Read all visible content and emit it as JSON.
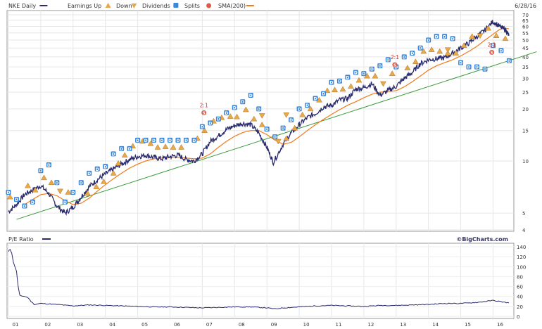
{
  "chart_data": [
    {
      "type": "line",
      "title": "NKE Daily",
      "date": "6/28/16",
      "y_scale": "log",
      "ylim": [
        4,
        70
      ],
      "y_ticks": [
        4,
        5,
        10,
        15,
        20,
        25,
        30,
        35,
        40,
        45,
        50,
        55,
        60,
        65,
        70
      ],
      "x_ticks": [
        "01",
        "02",
        "03",
        "04",
        "05",
        "06",
        "07",
        "08",
        "09",
        "10",
        "11",
        "12",
        "13",
        "14",
        "15",
        "16"
      ],
      "legend": {
        "placement": "top",
        "items": [
          {
            "key": "price",
            "label": "NKE Daily",
            "color": "#2a2a6e",
            "icon": "line"
          },
          {
            "key": "earn_up",
            "label": "Earnings Up",
            "color": "#e8a84a",
            "icon": "triangle-up"
          },
          {
            "key": "earn_down",
            "label": "Down",
            "color": "#e8a84a",
            "icon": "triangle-down"
          },
          {
            "key": "dividends",
            "label": "Dividends",
            "color": "#3a86d9",
            "icon": "square-d"
          },
          {
            "key": "splits",
            "label": "Splits",
            "color": "#e05a4a",
            "icon": "circle-s"
          },
          {
            "key": "sma",
            "label": "SMA(200)",
            "color": "#f07a1a",
            "icon": "line"
          }
        ]
      },
      "series": [
        {
          "name": "NKE Daily",
          "color": "#2a2a6e",
          "x": [
            2001.0,
            2001.25,
            2001.5,
            2001.75,
            2002.0,
            2002.25,
            2002.5,
            2002.75,
            2003.0,
            2003.25,
            2003.5,
            2003.75,
            2004.0,
            2004.25,
            2004.5,
            2004.75,
            2005.0,
            2005.25,
            2005.5,
            2005.75,
            2006.0,
            2006.25,
            2006.5,
            2006.75,
            2007.0,
            2007.25,
            2007.5,
            2007.75,
            2008.0,
            2008.25,
            2008.5,
            2008.75,
            2009.0,
            2009.2,
            2009.5,
            2009.75,
            2010.0,
            2010.25,
            2010.5,
            2010.75,
            2011.0,
            2011.25,
            2011.5,
            2011.75,
            2012.0,
            2012.25,
            2012.5,
            2012.75,
            2013.0,
            2013.25,
            2013.5,
            2013.75,
            2014.0,
            2014.25,
            2014.5,
            2014.75,
            2015.0,
            2015.25,
            2015.5,
            2015.75,
            2016.0,
            2016.2,
            2016.4,
            2016.49
          ],
          "values": [
            5.1,
            5.6,
            6.4,
            6.8,
            7.2,
            6.5,
            5.5,
            5.0,
            5.4,
            6.2,
            7.1,
            7.8,
            8.4,
            9.0,
            9.6,
            10.2,
            10.6,
            10.8,
            10.5,
            10.3,
            10.6,
            10.8,
            10.2,
            10.0,
            11.0,
            13.0,
            14.0,
            15.2,
            16.0,
            16.5,
            16.2,
            14.5,
            12.0,
            9.8,
            12.5,
            14.5,
            16.2,
            17.8,
            18.8,
            20.5,
            21.0,
            22.5,
            23.0,
            26.0,
            26.5,
            28.0,
            24.0,
            25.5,
            27.0,
            30.0,
            32.5,
            36.5,
            38.5,
            39.0,
            39.5,
            42.0,
            45.0,
            48.0,
            52.5,
            57.0,
            64.0,
            60.0,
            57.0,
            53.0
          ]
        },
        {
          "name": "SMA(200)",
          "color": "#f07a1a",
          "x": [
            2001.5,
            2001.75,
            2002.0,
            2002.25,
            2002.5,
            2002.75,
            2003.0,
            2003.25,
            2003.5,
            2003.75,
            2004.0,
            2004.25,
            2004.5,
            2004.75,
            2005.0,
            2005.25,
            2005.5,
            2005.75,
            2006.0,
            2006.25,
            2006.5,
            2006.75,
            2007.0,
            2007.25,
            2007.5,
            2007.75,
            2008.0,
            2008.25,
            2008.5,
            2008.75,
            2009.0,
            2009.25,
            2009.5,
            2009.75,
            2010.0,
            2010.25,
            2010.5,
            2010.75,
            2011.0,
            2011.25,
            2011.5,
            2011.75,
            2012.0,
            2012.25,
            2012.5,
            2012.75,
            2013.0,
            2013.25,
            2013.5,
            2013.75,
            2014.0,
            2014.25,
            2014.5,
            2014.75,
            2015.0,
            2015.25,
            2015.5,
            2015.75,
            2016.0,
            2016.2,
            2016.4,
            2016.49
          ],
          "values": [
            5.6,
            6.0,
            6.4,
            6.5,
            6.3,
            5.9,
            5.6,
            5.7,
            6.1,
            6.7,
            7.3,
            7.9,
            8.5,
            9.1,
            9.6,
            10.0,
            10.3,
            10.4,
            10.5,
            10.5,
            10.4,
            10.3,
            10.4,
            11.0,
            12.0,
            13.0,
            13.9,
            14.6,
            15.0,
            15.0,
            14.2,
            13.2,
            12.5,
            12.8,
            13.8,
            15.0,
            16.2,
            17.4,
            18.6,
            19.8,
            21.0,
            22.0,
            23.2,
            24.3,
            25.0,
            25.2,
            25.5,
            26.8,
            28.7,
            31.0,
            33.5,
            35.5,
            37.0,
            38.5,
            40.5,
            43.0,
            46.0,
            50.0,
            54.0,
            57.5,
            58.5,
            58.0
          ]
        },
        {
          "name": "Trendline",
          "color": "#3a9a3a",
          "x": [
            2001.25,
            2016.49
          ],
          "values": [
            4.6,
            38.0
          ]
        }
      ],
      "markers": {
        "earnings_up": [
          {
            "x": 2001.05,
            "y": 6.2
          },
          {
            "x": 2001.6,
            "y": 7.2
          },
          {
            "x": 2001.83,
            "y": 6.8
          },
          {
            "x": 2002.1,
            "y": 8.0
          },
          {
            "x": 2002.33,
            "y": 7.5
          },
          {
            "x": 2002.85,
            "y": 6.6
          },
          {
            "x": 2003.45,
            "y": 6.5
          },
          {
            "x": 2003.72,
            "y": 7.1
          },
          {
            "x": 2003.95,
            "y": 7.6
          },
          {
            "x": 2004.25,
            "y": 8.5
          },
          {
            "x": 2004.4,
            "y": 9.7
          },
          {
            "x": 2004.6,
            "y": 10.8
          },
          {
            "x": 2004.85,
            "y": 12.2
          },
          {
            "x": 2005.15,
            "y": 13.0
          },
          {
            "x": 2005.4,
            "y": 12.6
          },
          {
            "x": 2005.62,
            "y": 12.0
          },
          {
            "x": 2005.86,
            "y": 12.1
          },
          {
            "x": 2006.1,
            "y": 12.0
          },
          {
            "x": 2006.35,
            "y": 12.0
          },
          {
            "x": 2006.85,
            "y": 13.5
          },
          {
            "x": 2007.07,
            "y": 15.0
          },
          {
            "x": 2007.35,
            "y": 17.0
          },
          {
            "x": 2007.6,
            "y": 17.8
          },
          {
            "x": 2007.87,
            "y": 18.1
          },
          {
            "x": 2008.07,
            "y": 18.0
          },
          {
            "x": 2008.35,
            "y": 19.8
          },
          {
            "x": 2008.6,
            "y": 17.5
          },
          {
            "x": 2008.85,
            "y": 16.2
          },
          {
            "x": 2009.6,
            "y": 13.5
          },
          {
            "x": 2009.86,
            "y": 15.5
          },
          {
            "x": 2010.1,
            "y": 18.5
          },
          {
            "x": 2010.35,
            "y": 20.0
          },
          {
            "x": 2010.62,
            "y": 22.5
          },
          {
            "x": 2010.87,
            "y": 25.5
          },
          {
            "x": 2011.1,
            "y": 25.8
          },
          {
            "x": 2011.35,
            "y": 26.0
          },
          {
            "x": 2011.6,
            "y": 27.0
          },
          {
            "x": 2011.85,
            "y": 29.3
          },
          {
            "x": 2012.1,
            "y": 31.0
          },
          {
            "x": 2012.35,
            "y": 31.0
          },
          {
            "x": 2012.88,
            "y": 32.0
          },
          {
            "x": 2013.35,
            "y": 34.5
          },
          {
            "x": 2013.6,
            "y": 37.5
          },
          {
            "x": 2013.85,
            "y": 43.0
          },
          {
            "x": 2014.1,
            "y": 44.0
          },
          {
            "x": 2014.35,
            "y": 43.0
          },
          {
            "x": 2014.6,
            "y": 42.0
          },
          {
            "x": 2014.85,
            "y": 42.0
          },
          {
            "x": 2015.1,
            "y": 46.5
          },
          {
            "x": 2015.35,
            "y": 52.5
          },
          {
            "x": 2015.85,
            "y": 58.5
          },
          {
            "x": 2016.1,
            "y": 53.0
          },
          {
            "x": 2016.38,
            "y": 51.0
          }
        ],
        "earnings_down": [
          {
            "x": 2002.6,
            "y": 6.7
          },
          {
            "x": 2008.85,
            "y": 18.3
          },
          {
            "x": 2009.35,
            "y": 13.0
          },
          {
            "x": 2009.6,
            "y": 18.5
          },
          {
            "x": 2012.6,
            "y": 28.0
          },
          {
            "x": 2014.6,
            "y": 44.0
          },
          {
            "x": 2015.6,
            "y": 53.0
          }
        ],
        "dividends": [
          {
            "x": 2001.0,
            "y": 6.6
          },
          {
            "x": 2001.25,
            "y": 6.0
          },
          {
            "x": 2001.5,
            "y": 5.5
          },
          {
            "x": 2001.75,
            "y": 5.8
          },
          {
            "x": 2002.0,
            "y": 8.8
          },
          {
            "x": 2002.25,
            "y": 9.5
          },
          {
            "x": 2002.5,
            "y": 7.5
          },
          {
            "x": 2002.75,
            "y": 5.8
          },
          {
            "x": 2003.0,
            "y": 6.6
          },
          {
            "x": 2003.25,
            "y": 7.5
          },
          {
            "x": 2003.5,
            "y": 8.5
          },
          {
            "x": 2003.75,
            "y": 9.0
          },
          {
            "x": 2004.0,
            "y": 9.3
          },
          {
            "x": 2004.25,
            "y": 11.0
          },
          {
            "x": 2004.5,
            "y": 11.8
          },
          {
            "x": 2004.75,
            "y": 11.8
          },
          {
            "x": 2005.0,
            "y": 13.2
          },
          {
            "x": 2005.25,
            "y": 13.2
          },
          {
            "x": 2005.5,
            "y": 13.2
          },
          {
            "x": 2005.75,
            "y": 13.2
          },
          {
            "x": 2006.0,
            "y": 13.2
          },
          {
            "x": 2006.25,
            "y": 13.2
          },
          {
            "x": 2006.5,
            "y": 13.2
          },
          {
            "x": 2006.75,
            "y": 13.2
          },
          {
            "x": 2007.0,
            "y": 15.8
          },
          {
            "x": 2007.25,
            "y": 16.6
          },
          {
            "x": 2007.5,
            "y": 17.5
          },
          {
            "x": 2007.75,
            "y": 19.0
          },
          {
            "x": 2008.0,
            "y": 20.4
          },
          {
            "x": 2008.25,
            "y": 22.0
          },
          {
            "x": 2008.5,
            "y": 24.0
          },
          {
            "x": 2008.75,
            "y": 20.0
          },
          {
            "x": 2009.0,
            "y": 15.3
          },
          {
            "x": 2009.25,
            "y": 13.8
          },
          {
            "x": 2009.5,
            "y": 15.5
          },
          {
            "x": 2009.75,
            "y": 17.3
          },
          {
            "x": 2010.0,
            "y": 20.0
          },
          {
            "x": 2010.25,
            "y": 21.0
          },
          {
            "x": 2010.5,
            "y": 23.0
          },
          {
            "x": 2010.75,
            "y": 24.5
          },
          {
            "x": 2011.0,
            "y": 28.5
          },
          {
            "x": 2011.25,
            "y": 29.0
          },
          {
            "x": 2011.5,
            "y": 30.5
          },
          {
            "x": 2011.75,
            "y": 32.5
          },
          {
            "x": 2012.0,
            "y": 32.0
          },
          {
            "x": 2012.25,
            "y": 34.0
          },
          {
            "x": 2012.5,
            "y": 35.5
          },
          {
            "x": 2012.75,
            "y": 38.5
          },
          {
            "x": 2013.0,
            "y": 35.0
          },
          {
            "x": 2013.25,
            "y": 40.0
          },
          {
            "x": 2013.5,
            "y": 42.0
          },
          {
            "x": 2013.75,
            "y": 45.0
          },
          {
            "x": 2014.0,
            "y": 50.0
          },
          {
            "x": 2014.25,
            "y": 52.5
          },
          {
            "x": 2014.5,
            "y": 52.5
          },
          {
            "x": 2014.75,
            "y": 51.0
          },
          {
            "x": 2015.0,
            "y": 37.0
          },
          {
            "x": 2015.25,
            "y": 35.0
          },
          {
            "x": 2015.5,
            "y": 35.0
          },
          {
            "x": 2015.75,
            "y": 34.0
          },
          {
            "x": 2016.0,
            "y": 46.5
          },
          {
            "x": 2016.25,
            "y": 43.5
          },
          {
            "x": 2016.5,
            "y": 38.0
          }
        ],
        "splits": [
          {
            "x": 2007.05,
            "y": 19.0,
            "label": "2:1"
          },
          {
            "x": 2012.96,
            "y": 36.0,
            "label": "2:1"
          },
          {
            "x": 2015.96,
            "y": 42.5,
            "label": "2:1"
          }
        ]
      }
    },
    {
      "type": "line",
      "title": "P/E Ratio",
      "ylim": [
        0,
        140
      ],
      "y_ticks": [
        0,
        20,
        40,
        60,
        80,
        100,
        120,
        140
      ],
      "x_ticks": [
        "01",
        "02",
        "03",
        "04",
        "05",
        "06",
        "07",
        "08",
        "09",
        "10",
        "11",
        "12",
        "13",
        "14",
        "15",
        "16"
      ],
      "series": [
        {
          "name": "P/E Ratio",
          "color": "#2a2a6e",
          "x": [
            2001.0,
            2001.05,
            2001.1,
            2001.15,
            2001.25,
            2001.3,
            2001.35,
            2001.5,
            2001.6,
            2001.7,
            2001.8,
            2002.0,
            2002.5,
            2003.0,
            2003.5,
            2004.0,
            2004.5,
            2005.0,
            2005.5,
            2006.0,
            2006.5,
            2007.0,
            2007.5,
            2008.0,
            2008.5,
            2009.0,
            2009.25,
            2009.5,
            2010.0,
            2010.5,
            2011.0,
            2011.5,
            2012.0,
            2012.5,
            2013.0,
            2013.5,
            2014.0,
            2014.5,
            2015.0,
            2015.5,
            2016.0,
            2016.2,
            2016.49
          ],
          "values": [
            130,
            135,
            128,
            110,
            90,
            60,
            42,
            40,
            38,
            30,
            24,
            26,
            24,
            21,
            23,
            22,
            21,
            20,
            19,
            19,
            18,
            17,
            18,
            19,
            19,
            17,
            15,
            17,
            19,
            21,
            22,
            21,
            20,
            22,
            22,
            23,
            24,
            26,
            26,
            28,
            32,
            30,
            27
          ]
        }
      ]
    }
  ],
  "branding": "©BigCharts.com",
  "pe_title": "P/E Ratio"
}
